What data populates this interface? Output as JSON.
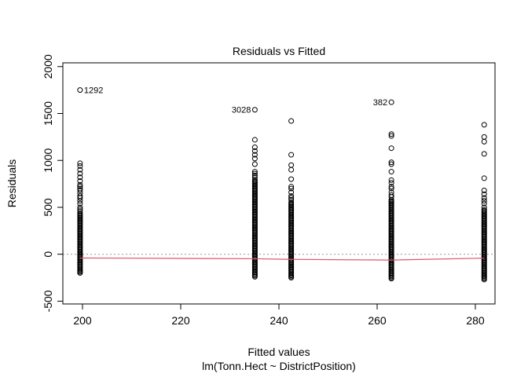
{
  "chart_data": {
    "type": "scatter",
    "title": "Residuals vs Fitted",
    "xlabel": "Fitted values",
    "subtitle": "lm(Tonn.Hect ~ DistrictPosition)",
    "ylabel": "Residuals",
    "xlim": [
      196,
      284
    ],
    "ylim": [
      -530,
      2040
    ],
    "x_ticks": [
      200,
      220,
      240,
      260,
      280
    ],
    "y_ticks": [
      -500,
      0,
      500,
      1000,
      1500,
      2000
    ],
    "grid": false,
    "groups": [
      {
        "x": 199.5,
        "min": -200,
        "dense_max": 440,
        "outliers": [
          460,
          480,
          500,
          540,
          570,
          600,
          620,
          650,
          680,
          700,
          720,
          740,
          780,
          820,
          860,
          900,
          940,
          970,
          1750
        ]
      },
      {
        "x": 235.1,
        "min": -240,
        "dense_max": 800,
        "outliers": [
          820,
          840,
          860,
          880,
          960,
          1020,
          1060,
          1100,
          1140,
          1220,
          1540
        ]
      },
      {
        "x": 242.5,
        "min": -250,
        "dense_max": 560,
        "outliers": [
          580,
          600,
          620,
          660,
          700,
          720,
          800,
          900,
          950,
          1060,
          1420
        ]
      },
      {
        "x": 262.9,
        "min": -260,
        "dense_max": 590,
        "outliers": [
          610,
          630,
          660,
          700,
          720,
          760,
          790,
          880,
          960,
          980,
          1130,
          1260,
          1280,
          1620
        ]
      },
      {
        "x": 281.8,
        "min": -270,
        "dense_max": 480,
        "outliers": [
          500,
          540,
          570,
          600,
          640,
          680,
          810,
          1070,
          1200,
          1250,
          1380
        ]
      }
    ],
    "point_labels": [
      {
        "text": "1292",
        "x": 199.5,
        "y": 1750,
        "side": "right"
      },
      {
        "text": "3028",
        "x": 235.1,
        "y": 1540,
        "side": "left"
      },
      {
        "text": "382",
        "x": 262.9,
        "y": 1620,
        "side": "left"
      }
    ],
    "smooth_line": {
      "color": "#DF536B",
      "x": [
        199.5,
        235.1,
        242.5,
        262.9,
        281.8
      ],
      "y": [
        -40,
        -48,
        -55,
        -62,
        -42
      ]
    },
    "reference_line": {
      "y": 0,
      "style": "dotted",
      "color": "#999999"
    },
    "point_color": "#000000"
  }
}
